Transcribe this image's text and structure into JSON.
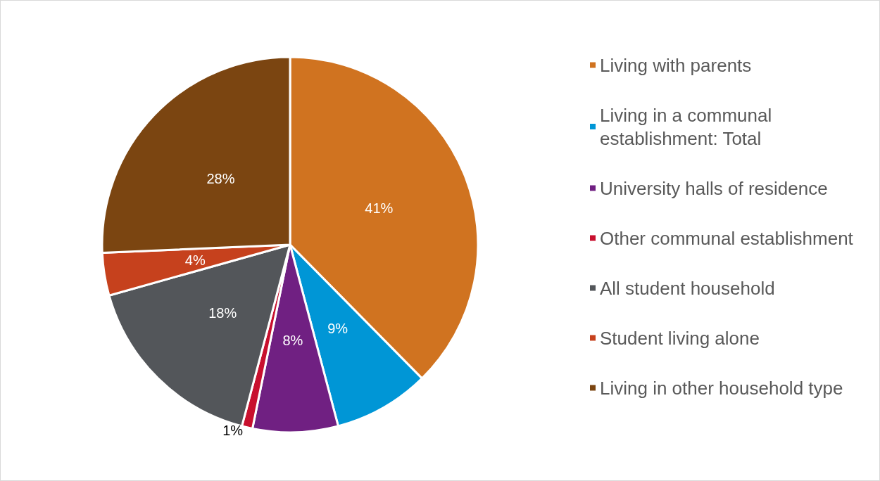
{
  "chart_data": {
    "type": "pie",
    "categories": [
      "Living with parents",
      "Living in a communal establishment: Total",
      "University halls of residence",
      "Other communal establishment",
      "All student household",
      "Student living alone",
      "Living in other household type"
    ],
    "values": [
      41,
      9,
      8,
      1,
      18,
      4,
      28
    ],
    "value_labels": [
      "41%",
      "9%",
      "8%",
      "1%",
      "18%",
      "4%",
      "28%"
    ],
    "colors": [
      "#d07320",
      "#0096d6",
      "#702082",
      "#c8102e",
      "#53565a",
      "#c6411d",
      "#7b4511"
    ],
    "legend": "right"
  }
}
